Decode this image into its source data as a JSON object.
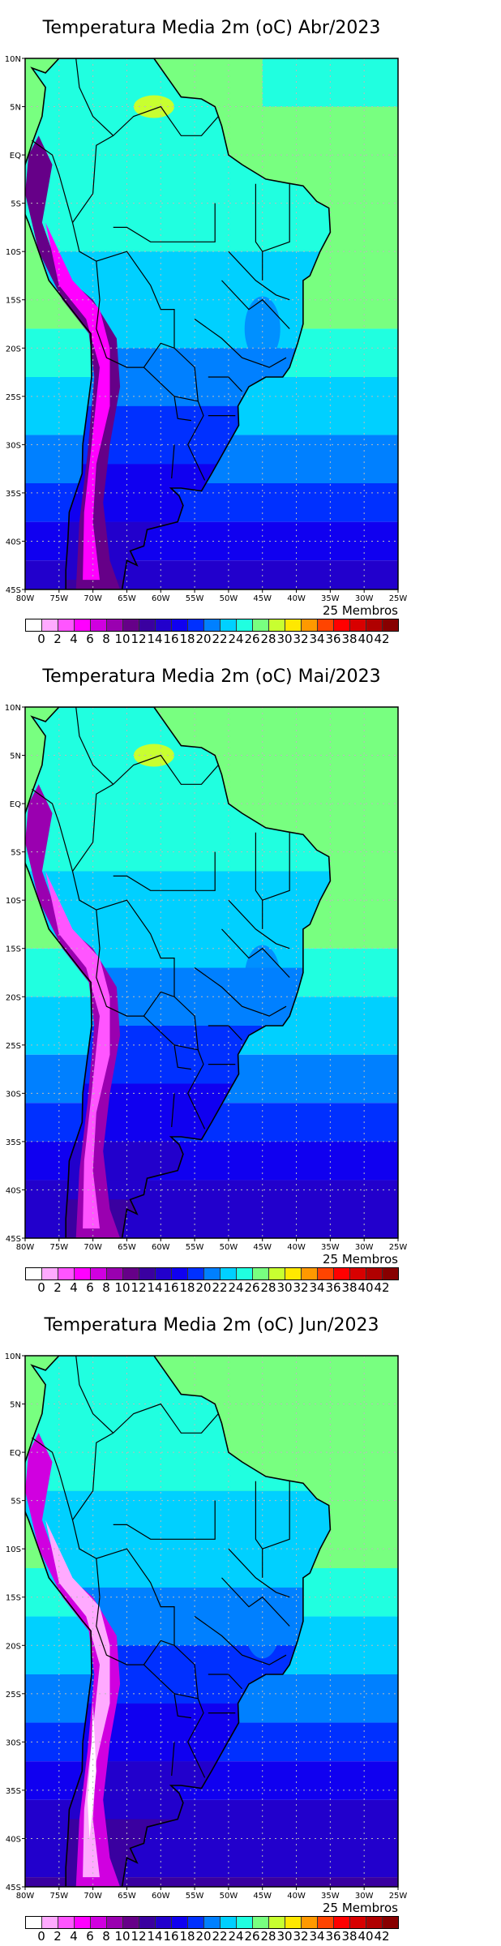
{
  "panels": [
    {
      "title": "Temperatura Media 2m (oC) Abr/2023",
      "shift": 0
    },
    {
      "title": "Temperatura Media 2m (oC) Mai/2023",
      "shift": 3
    },
    {
      "title": "Temperatura Media 2m (oC) Jun/2023",
      "shift": 6
    }
  ],
  "members_label": "25 Membros",
  "lat_labels": [
    "10N",
    "5N",
    "EQ",
    "5S",
    "10S",
    "15S",
    "20S",
    "25S",
    "30S",
    "35S",
    "40S",
    "45S"
  ],
  "lon_labels": [
    "80W",
    "75W",
    "70W",
    "65W",
    "60W",
    "55W",
    "50W",
    "45W",
    "40W",
    "35W",
    "30W",
    "25W"
  ],
  "colorbar": {
    "labels": [
      "0",
      "2",
      "4",
      "6",
      "8",
      "10",
      "12",
      "14",
      "16",
      "18",
      "20",
      "22",
      "24",
      "26",
      "28",
      "30",
      "32",
      "34",
      "36",
      "38",
      "40",
      "42"
    ],
    "colors": [
      "#ffffff",
      "#ffaaff",
      "#ff55ff",
      "#ff00ff",
      "#d000e0",
      "#9a00b0",
      "#660088",
      "#3a00a0",
      "#2200cc",
      "#1000f0",
      "#0030ff",
      "#0080ff",
      "#00d0ff",
      "#20ffe0",
      "#78ff80",
      "#c8ff30",
      "#ffe800",
      "#ff9900",
      "#ff4400",
      "#ff0000",
      "#d80000",
      "#b00000",
      "#880000"
    ]
  },
  "chart_data": {
    "type": "heatmap",
    "title": "Temperatura Media 2m (oC)",
    "months": [
      "Abr/2023",
      "Mai/2023",
      "Jun/2023"
    ],
    "xlim": [
      "80W",
      "25W"
    ],
    "ylim": [
      "45S",
      "10N"
    ],
    "units": "oC",
    "levels": [
      0,
      2,
      4,
      6,
      8,
      10,
      12,
      14,
      16,
      18,
      20,
      22,
      24,
      26,
      28,
      30,
      32,
      34,
      36,
      38,
      40,
      42
    ]
  }
}
